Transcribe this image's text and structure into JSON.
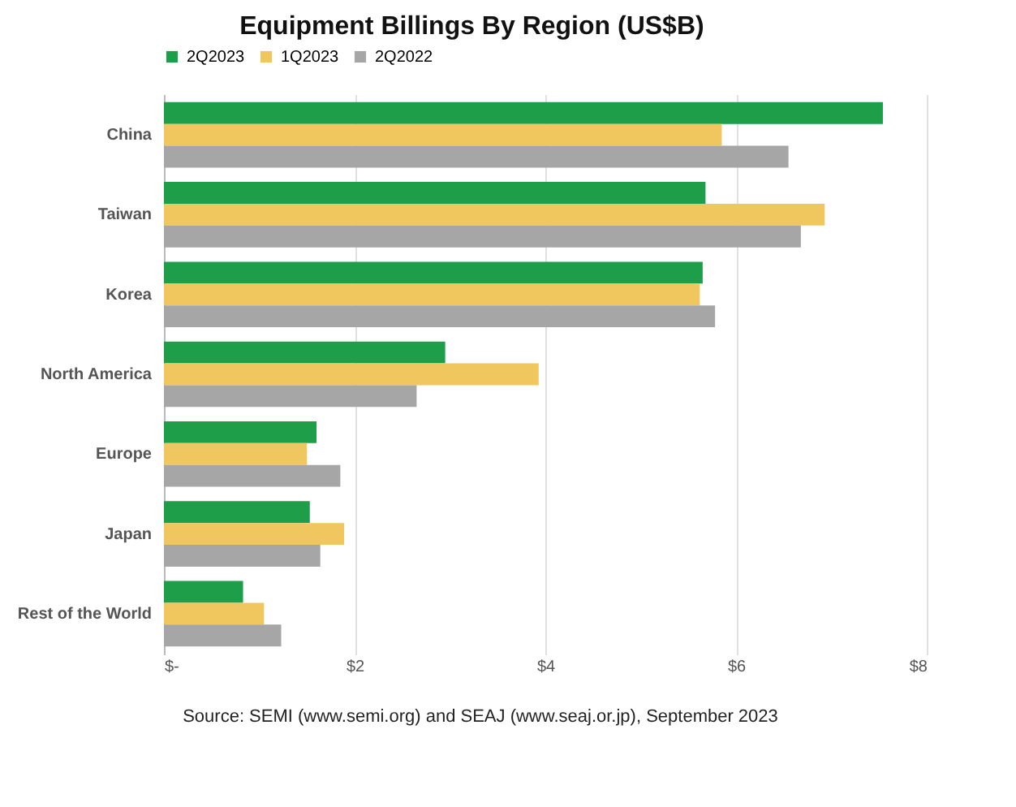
{
  "chart_data": {
    "type": "bar",
    "orientation": "horizontal",
    "title": "Equipment Billings By Region (US$B)",
    "categories": [
      "China",
      "Taiwan",
      "Korea",
      "North America",
      "Europe",
      "Japan",
      "Rest of the World"
    ],
    "series": [
      {
        "name": "2Q2023",
        "color": "#1e9e48",
        "values": [
          7.54,
          5.68,
          5.65,
          2.95,
          1.6,
          1.53,
          0.83
        ]
      },
      {
        "name": "1Q2023",
        "color": "#f0c75e",
        "values": [
          5.85,
          6.93,
          5.62,
          3.93,
          1.5,
          1.89,
          1.05
        ]
      },
      {
        "name": "2Q2022",
        "color": "#a6a6a6",
        "values": [
          6.55,
          6.68,
          5.78,
          2.65,
          1.85,
          1.64,
          1.23
        ]
      }
    ],
    "xlim": [
      0,
      8
    ],
    "xticks": [
      {
        "value": 0,
        "label": "$-"
      },
      {
        "value": 2,
        "label": "$2"
      },
      {
        "value": 4,
        "label": "$4"
      },
      {
        "value": 6,
        "label": "$6"
      },
      {
        "value": 8,
        "label": "$8"
      }
    ],
    "grid": "x",
    "legend": "top",
    "annotations": [
      "Source: SEMI (www.semi.org) and SEAJ (www.seaj.or.jp), September 2023"
    ]
  }
}
